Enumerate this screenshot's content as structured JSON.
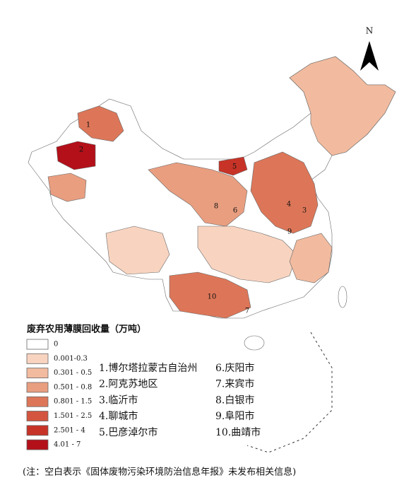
{
  "map": {
    "north": "N",
    "markers": [
      "1",
      "2",
      "3",
      "4",
      "5",
      "6",
      "7",
      "8",
      "9",
      "10"
    ]
  },
  "legend": {
    "title": "废弃农用薄膜回收量（万吨）",
    "items": [
      {
        "label": "0",
        "color": "#ffffff"
      },
      {
        "label": "0.001-0.3",
        "color": "#f8d4c0"
      },
      {
        "label": "0.301 - 0.5",
        "color": "#f2bb9f"
      },
      {
        "label": "0.501 - 0.8",
        "color": "#e99e80"
      },
      {
        "label": "0.801 - 1.5",
        "color": "#dd7658"
      },
      {
        "label": "1.501 - 2.5",
        "color": "#d4553f"
      },
      {
        "label": "2.501 - 4",
        "color": "#c73327"
      },
      {
        "label": "4.01 - 7",
        "color": "#b3101a"
      }
    ]
  },
  "cities": [
    "1.博尔塔拉蒙古自治州",
    "2.阿克苏地区",
    "3.临沂市",
    "4.聊城市",
    "5.巴彦淖尔市",
    "6.庆阳市",
    "7.来宾市",
    "8.白银市",
    "9.阜阳市",
    "10.曲靖市"
  ],
  "note": "(注：空白表示《固体废物污染环境防治信息年报》未发布相关信息)"
}
